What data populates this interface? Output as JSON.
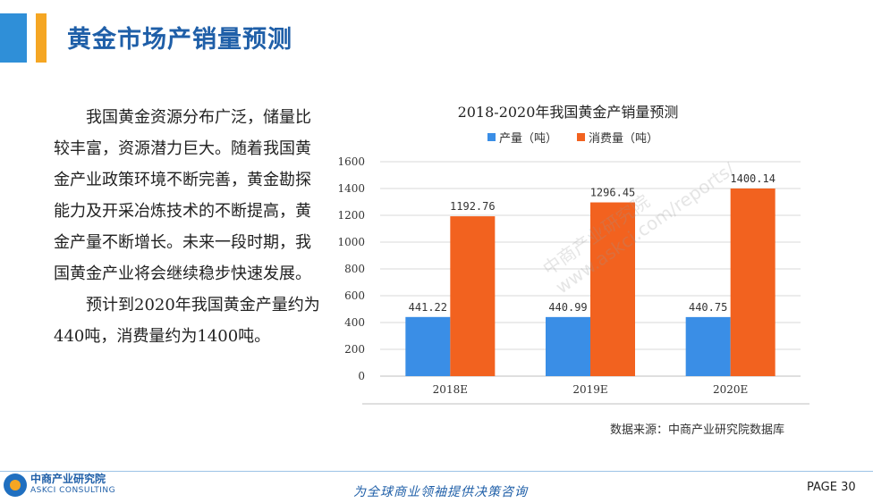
{
  "header": {
    "title": "黄金市场产销量预测"
  },
  "body": {
    "paragraphs": [
      "我国黄金资源分布广泛，储量比较丰富，资源潜力巨大。随着我国黄金产业政策环境不断完善，黄金勘探能力及开采冶炼技术的不断提高，黄金产量不断增长。未来一段时期，我国黄金产业将会继续稳步快速发展。",
      "预计到2020年我国黄金产量约为440吨，消费量约为1400吨。"
    ]
  },
  "chart_data": {
    "type": "bar",
    "title": "2018-2020年我国黄金产销量预测",
    "categories": [
      "2018E",
      "2019E",
      "2020E"
    ],
    "series": [
      {
        "name": "产量（吨）",
        "values": [
          441.22,
          440.99,
          440.75
        ],
        "color": "#3a8ee6"
      },
      {
        "name": "消费量（吨）",
        "values": [
          1192.76,
          1296.45,
          1400.14
        ],
        "color": "#f2621f"
      }
    ],
    "ylim": [
      0,
      1600
    ],
    "yticks": [
      0,
      200,
      400,
      600,
      800,
      1000,
      1200,
      1400,
      1600
    ],
    "grid": true,
    "legend": "top"
  },
  "source": "数据来源：中商产业研究院数据库",
  "footer": {
    "logo_cn": "中商产业研究院",
    "logo_en": "ASKCI CONSULTING",
    "slogan": "为全球商业领袖提供决策咨询",
    "page": "PAGE  30"
  },
  "watermark": "中商产业研究院 www.askci.com/reports/"
}
